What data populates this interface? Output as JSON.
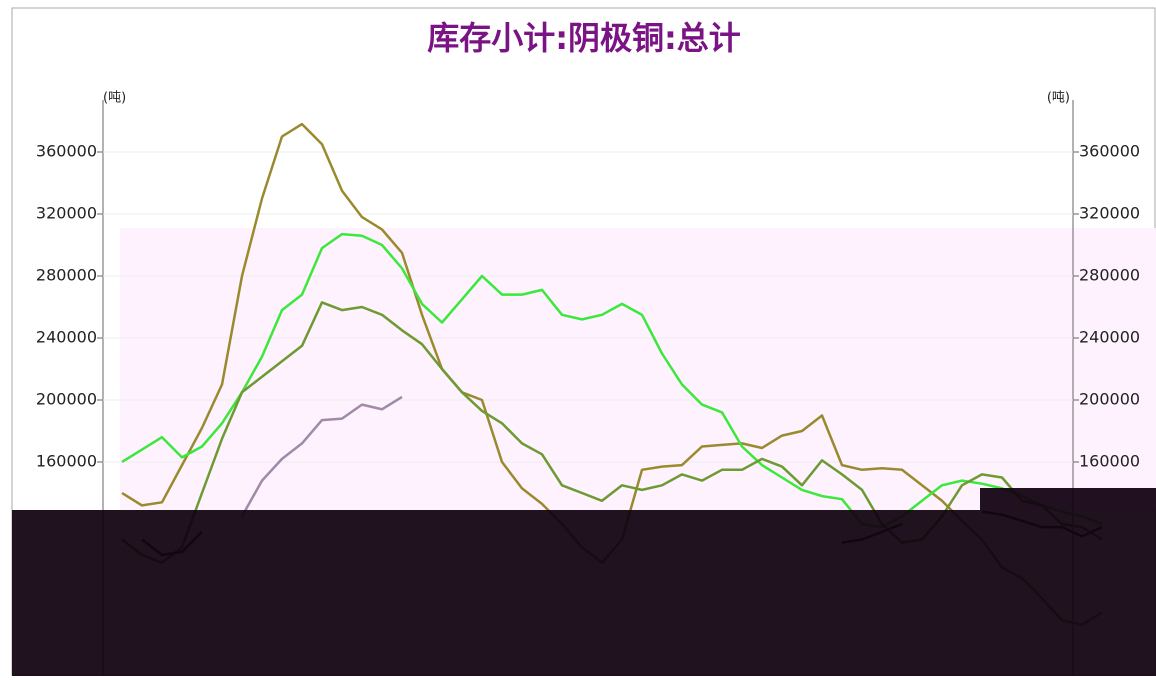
{
  "chart_data": {
    "type": "line",
    "title": "库存小计:阴极铜:总计",
    "y_unit": "(吨)",
    "y2_unit": "(吨)",
    "ylim": [
      23000,
      393000
    ],
    "yticks": [
      160000,
      200000,
      240000,
      280000,
      320000,
      360000
    ],
    "y2lim": [
      23000,
      393000
    ],
    "y2ticks": [
      160000,
      200000,
      240000,
      280000,
      320000,
      360000
    ],
    "grid": true,
    "series": [
      {
        "color": "#9a8a2e",
        "values": [
          140000,
          132000,
          134000,
          158000,
          182000,
          210000,
          280000,
          330000,
          370000,
          378000,
          365000,
          335000,
          318000,
          310000,
          295000,
          255000,
          220000,
          205000,
          200000,
          160000,
          143000,
          133000,
          120000,
          105000,
          95000,
          110000,
          155000,
          157000,
          158000,
          170000,
          171000,
          172000,
          169000,
          177000,
          180000,
          190000,
          158000,
          155000,
          156000,
          155000,
          145000,
          135000,
          122000,
          110000,
          92000,
          85000,
          72000,
          58000,
          55000,
          63000
        ]
      },
      {
        "color": "#3be83b",
        "values": [
          160000,
          168000,
          176000,
          163000,
          170000,
          185000,
          205000,
          228000,
          258000,
          268000,
          298000,
          307000,
          306000,
          300000,
          285000,
          262000,
          250000,
          265000,
          280000,
          268000,
          268000,
          271000,
          255000,
          252000,
          255000,
          262000,
          255000,
          230000,
          210000,
          197000,
          192000,
          170000,
          158000,
          150000,
          142000,
          138000,
          136000,
          120000,
          118000,
          125000,
          135000,
          145000,
          148000,
          146000,
          143000,
          138000,
          132000,
          128000,
          125000,
          120000
        ]
      },
      {
        "color": "#6e9a32",
        "values": [
          110000,
          100000,
          95000,
          105000,
          140000,
          175000,
          205000,
          215000,
          225000,
          235000,
          263000,
          258000,
          260000,
          255000,
          245000,
          236000,
          220000,
          205000,
          193000,
          185000,
          172000,
          165000,
          145000,
          140000,
          135000,
          145000,
          142000,
          145000,
          152000,
          148000,
          155000,
          155000,
          162000,
          157000,
          145000,
          161000,
          152000,
          142000,
          120000,
          108000,
          110000,
          125000,
          145000,
          152000,
          150000,
          135000,
          132000,
          120000,
          118000,
          110000
        ]
      },
      {
        "color": "#a08aa8",
        "values": [
          null,
          null,
          null,
          null,
          null,
          null,
          125000,
          148000,
          162000,
          172000,
          187000,
          188000,
          197000,
          194000,
          202000,
          null,
          null,
          null,
          null,
          null,
          null,
          null,
          null,
          null,
          null,
          null,
          null,
          null,
          null,
          null,
          null,
          null,
          null,
          null,
          null,
          null,
          null,
          null,
          null,
          null,
          null,
          null,
          null,
          null,
          null,
          null,
          null,
          null,
          null,
          null
        ]
      },
      {
        "color": "#1f6a1f",
        "values": [
          null,
          110000,
          100000,
          102000,
          115000,
          null,
          null,
          null,
          null,
          null,
          null,
          null,
          null,
          null,
          null,
          null,
          null,
          null,
          null,
          null,
          null,
          null,
          null,
          null,
          null,
          null,
          null,
          null,
          null,
          null,
          null,
          null,
          null,
          null,
          null,
          null,
          108000,
          110000,
          115000,
          120000,
          null,
          null,
          null,
          128000,
          126000,
          122000,
          118000,
          118000,
          112000,
          118000
        ]
      }
    ]
  }
}
